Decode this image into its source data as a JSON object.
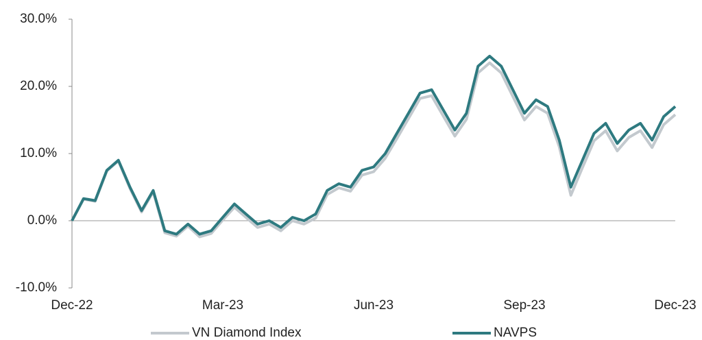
{
  "chart_data": {
    "type": "line",
    "categories": [
      "Dec-22",
      null,
      null,
      null,
      null,
      null,
      null,
      null,
      null,
      null,
      null,
      null,
      null,
      "Mar-23",
      null,
      null,
      null,
      null,
      null,
      null,
      null,
      null,
      null,
      null,
      null,
      null,
      "Jun-23",
      null,
      null,
      null,
      null,
      null,
      null,
      null,
      null,
      null,
      null,
      null,
      null,
      "Sep-23",
      null,
      null,
      null,
      null,
      null,
      null,
      null,
      null,
      null,
      null,
      null,
      null,
      "Dec-23"
    ],
    "series": [
      {
        "name": "VN Diamond Index",
        "color": "#c3c9ce",
        "values": [
          0,
          3.2,
          2.9,
          7.4,
          8.9,
          4.8,
          1.3,
          4.3,
          -1.8,
          -2.3,
          -0.8,
          -2.4,
          -1.9,
          0.1,
          2.0,
          0.5,
          -1.0,
          -0.5,
          -1.5,
          0,
          -0.5,
          0.4,
          3.9,
          4.9,
          4.4,
          6.8,
          7.3,
          9.3,
          12.2,
          15.2,
          18.2,
          18.6,
          15.6,
          12.6,
          15.1,
          22.0,
          23.5,
          22.0,
          18.5,
          15.0,
          17.0,
          16.0,
          11.0,
          3.8,
          7.9,
          11.9,
          13.4,
          10.4,
          12.4,
          13.4,
          10.9,
          14.3,
          15.8
        ]
      },
      {
        "name": "NAVPS",
        "color": "#2e7a80",
        "values": [
          0,
          3.3,
          3.0,
          7.5,
          9.0,
          5.0,
          1.5,
          4.5,
          -1.5,
          -2.0,
          -0.5,
          -2.0,
          -1.5,
          0.5,
          2.5,
          1.0,
          -0.5,
          0,
          -1.0,
          0.5,
          0,
          1.0,
          4.5,
          5.5,
          5.0,
          7.5,
          8.0,
          10.0,
          13.0,
          16.0,
          19.0,
          19.5,
          16.5,
          13.5,
          16.0,
          23.0,
          24.5,
          23.0,
          19.5,
          16.0,
          18.0,
          17.0,
          12.0,
          5.0,
          9.0,
          13.0,
          14.5,
          11.5,
          13.5,
          14.5,
          12.0,
          15.5,
          17.0
        ]
      }
    ],
    "ylim": [
      -10,
      30
    ],
    "yticks": [
      {
        "value": -10,
        "label": "-10.0%"
      },
      {
        "value": 0,
        "label": "0.0%"
      },
      {
        "value": 10,
        "label": "10.0%"
      },
      {
        "value": 20,
        "label": "20.0%"
      },
      {
        "value": 30,
        "label": "30.0%"
      }
    ],
    "grid": false,
    "legend": "bottom"
  }
}
